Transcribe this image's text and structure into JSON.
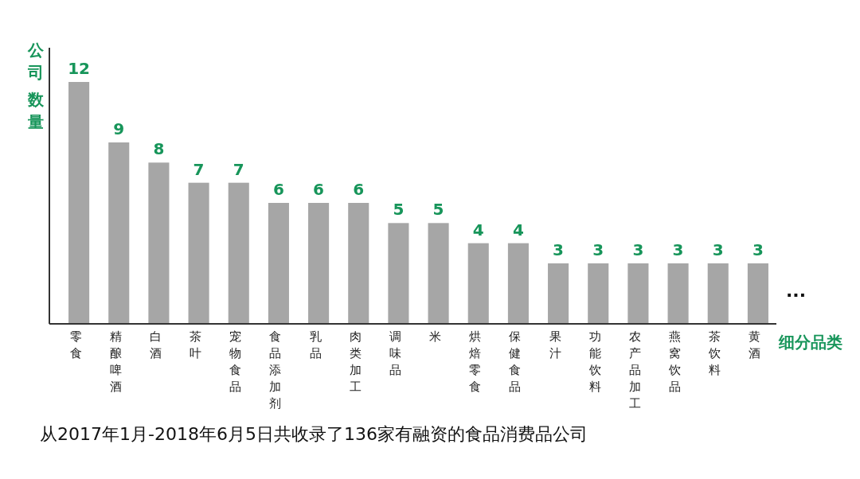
{
  "chart_data": {
    "type": "bar",
    "xlabel": "细分品类",
    "ylabel": "公司数量",
    "categories": [
      "零食",
      "精酿啤酒",
      "白酒",
      "茶叶",
      "宠物食品",
      "食品添加剂",
      "乳品",
      "肉类加工",
      "调味品",
      "米",
      "烘焙零食",
      "保健食品",
      "果汁",
      "功能饮料",
      "农产品加工",
      "燕窝饮品",
      "茶饮料",
      "黄酒"
    ],
    "values": [
      12,
      9,
      8,
      7,
      7,
      6,
      6,
      6,
      5,
      5,
      4,
      4,
      3,
      3,
      3,
      3,
      3,
      3
    ],
    "color": "#a6a6a6",
    "data_labels": true,
    "annotations": [
      "从2017年1月-2018年6月5日共收录了136家有融资的食品消费品公司",
      "..."
    ]
  }
}
